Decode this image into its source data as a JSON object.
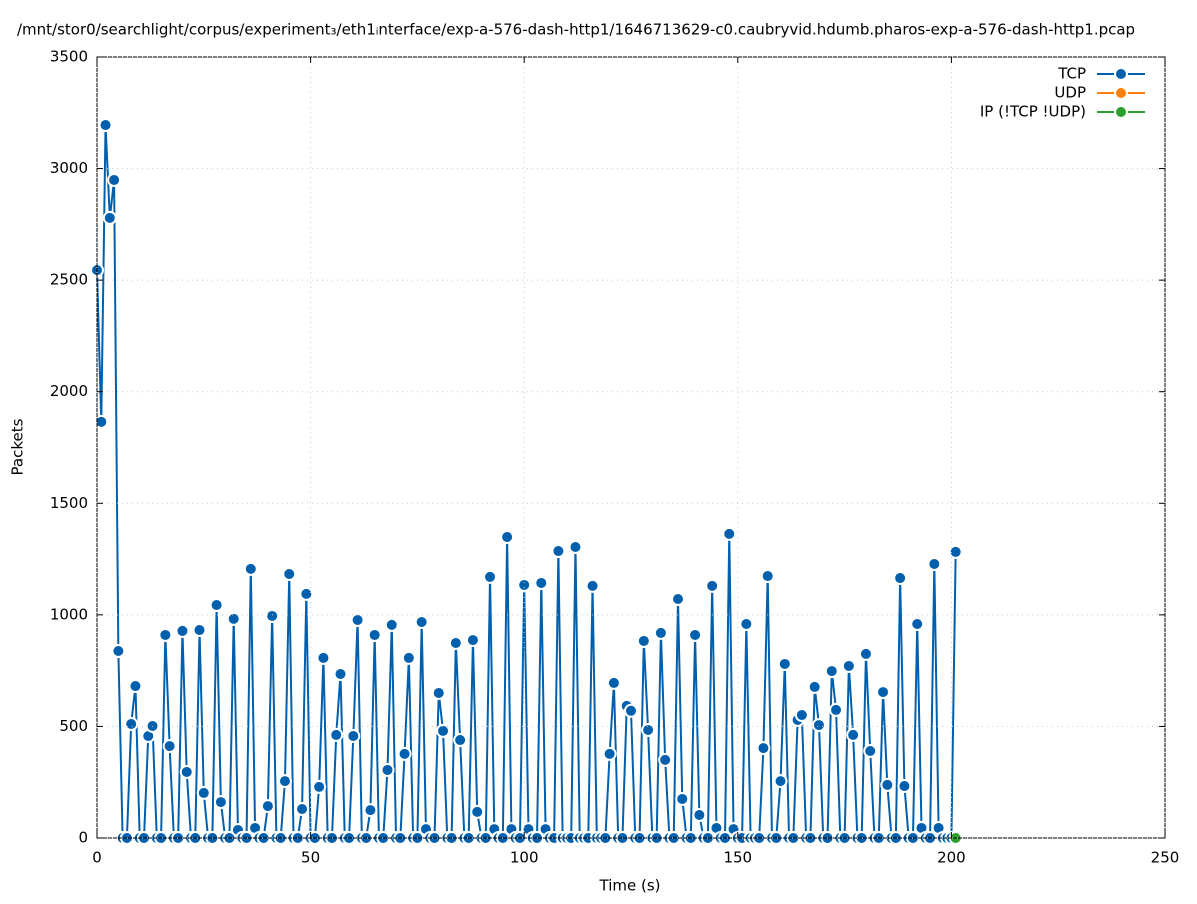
{
  "chart_data": {
    "type": "line",
    "title": "/mnt/stor0/searchlight/corpus/experiment₃/eth1ᵢnterface/exp-a-576-dash-http1/1646713629-c0.caubryvid.hdumb.pharos-exp-a-576-dash-http1.pcap",
    "xlabel": "Time (s)",
    "ylabel": "Packets",
    "xlim": [
      0,
      250
    ],
    "xticks": [
      0,
      50,
      100,
      150,
      200,
      250
    ],
    "ylim": [
      0,
      3500
    ],
    "yticks": [
      0,
      500,
      1000,
      1500,
      2000,
      2500,
      3000,
      3500
    ],
    "grid": true,
    "legend": "upper right",
    "series": [
      {
        "name": "TCP",
        "color": "#0060ad",
        "x": [
          0,
          1,
          2,
          3,
          4,
          5,
          6,
          7,
          8,
          9,
          10,
          11,
          12,
          13,
          14,
          15,
          16,
          17,
          18,
          19,
          20,
          21,
          22,
          23,
          24,
          25,
          26,
          27,
          28,
          29,
          30,
          31,
          32,
          33,
          34,
          35,
          36,
          37,
          38,
          39,
          40,
          41,
          42,
          43,
          44,
          45,
          46,
          47,
          48,
          49,
          50,
          51,
          52,
          53,
          54,
          55,
          56,
          57,
          58,
          59,
          60,
          61,
          62,
          63,
          64,
          65,
          66,
          67,
          68,
          69,
          70,
          71,
          72,
          73,
          74,
          75,
          76,
          77,
          78,
          79,
          80,
          81,
          82,
          83,
          84,
          85,
          86,
          87,
          88,
          89,
          90,
          91,
          92,
          93,
          94,
          95,
          96,
          97,
          98,
          99,
          100,
          101,
          102,
          103,
          104,
          105,
          106,
          107,
          108,
          109,
          110,
          111,
          112,
          113,
          114,
          115,
          116,
          117,
          118,
          119,
          120,
          121,
          122,
          123,
          124,
          125,
          126,
          127,
          128,
          129,
          130,
          131,
          132,
          133,
          134,
          135,
          136,
          137,
          138,
          139,
          140,
          141,
          142,
          143,
          144,
          145,
          146,
          147,
          148,
          149,
          150,
          151,
          152,
          153,
          154,
          155,
          156,
          157,
          158,
          159,
          160,
          161,
          162,
          163,
          164,
          165,
          166,
          167,
          168,
          169,
          170,
          171,
          172,
          173,
          174,
          175,
          176,
          177,
          178,
          179,
          180,
          181,
          182,
          183,
          184,
          185,
          186,
          187,
          188,
          189,
          190,
          191,
          192,
          193,
          194,
          195,
          196,
          197,
          198,
          199,
          200,
          201
        ],
        "values": [
          2545,
          1865,
          3195,
          2779,
          2949,
          838,
          0,
          0,
          511,
          681,
          0,
          0,
          457,
          502,
          0,
          0,
          910,
          412,
          0,
          0,
          928,
          296,
          0,
          0,
          932,
          202,
          0,
          0,
          1044,
          161,
          0,
          0,
          982,
          36,
          0,
          0,
          1206,
          45,
          0,
          0,
          143,
          995,
          0,
          0,
          255,
          1183,
          0,
          0,
          130,
          1094,
          0,
          0,
          229,
          807,
          0,
          0,
          462,
          735,
          0,
          0,
          457,
          977,
          0,
          0,
          125,
          910,
          0,
          0,
          305,
          955,
          0,
          0,
          377,
          807,
          0,
          0,
          968,
          40,
          0,
          0,
          650,
          480,
          0,
          0,
          874,
          439,
          0,
          0,
          887,
          117,
          0,
          0,
          1170,
          40,
          0,
          0,
          1349,
          40,
          0,
          0,
          1134,
          40,
          0,
          0,
          1143,
          40,
          0,
          0,
          1286,
          0,
          0,
          0,
          1304,
          0,
          0,
          0,
          1130,
          0,
          0,
          0,
          377,
          695,
          0,
          0,
          592,
          570,
          0,
          0,
          883,
          484,
          0,
          0,
          919,
          350,
          0,
          0,
          1071,
          175,
          0,
          0,
          910,
          103,
          0,
          0,
          1130,
          45,
          0,
          0,
          1363,
          40,
          0,
          0,
          959,
          0,
          0,
          0,
          403,
          1174,
          0,
          0,
          255,
          780,
          0,
          0,
          529,
          551,
          0,
          0,
          677,
          506,
          0,
          0,
          748,
          574,
          0,
          0,
          771,
          462,
          0,
          0,
          825,
          390,
          0,
          0,
          654,
          238,
          0,
          0,
          1165,
          233,
          0,
          0,
          959,
          45,
          0,
          0,
          1228,
          45,
          0,
          0,
          0,
          1282
        ]
      },
      {
        "name": "UDP",
        "color": "#ff7f0e",
        "x": [],
        "values": []
      },
      {
        "name": "IP (!TCP  !UDP)",
        "color": "#2ca02c",
        "x": [
          201
        ],
        "values": [
          0
        ]
      }
    ]
  }
}
